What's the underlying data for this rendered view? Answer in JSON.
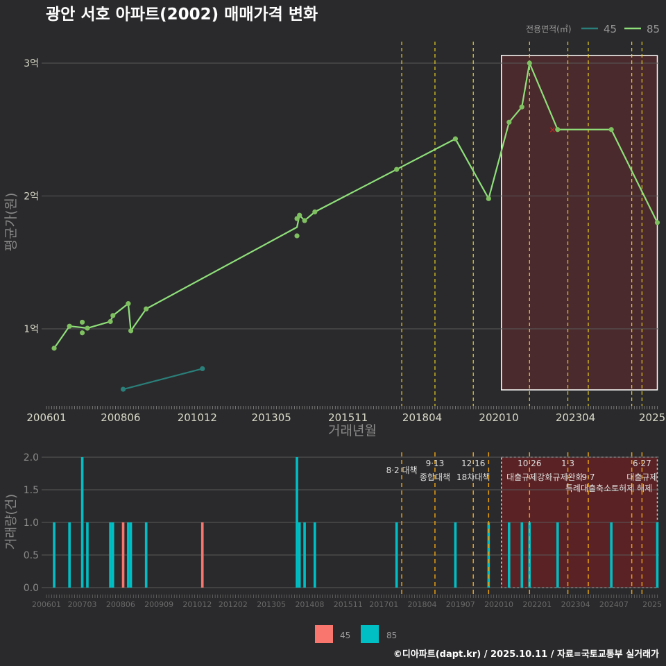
{
  "chart_data": [
    {
      "type": "line",
      "title": "광안 서호 아파트(2002) 매매가격 변화",
      "xlabel": "거래년월",
      "ylabel": "평균가(원)",
      "ylim_manwon": [
        4500,
        31000
      ],
      "yticks": [
        {
          "value": 10000,
          "label": "1억"
        },
        {
          "value": 20000,
          "label": "2억"
        },
        {
          "value": 30000,
          "label": "3억"
        }
      ],
      "xticks": [
        "200601",
        "200806",
        "201012",
        "201305",
        "201511",
        "201804",
        "202010",
        "202304",
        "2025"
      ],
      "legend": {
        "title": "전용면적(㎡)",
        "entries": [
          "45",
          "85"
        ],
        "position": "top-right"
      },
      "series": [
        {
          "name": "45",
          "color": "#2a7f7a",
          "points": [
            [
              "2008-07",
              5450
            ],
            [
              "2011-02",
              7000
            ]
          ]
        },
        {
          "name": "85",
          "color": "#8fe07a",
          "points": [
            [
              "2006-04",
              8540
            ],
            [
              "2006-10",
              10200
            ],
            [
              "2007-03",
              10500
            ],
            [
              "2007-03",
              9700
            ],
            [
              "2007-05",
              10050
            ],
            [
              "2008-02",
              10550
            ],
            [
              "2008-03",
              11000
            ],
            [
              "2008-09",
              11900
            ],
            [
              "2008-10",
              9850
            ],
            [
              "2009-04",
              11500
            ],
            [
              "2014-03",
              18300
            ],
            [
              "2014-03",
              17000
            ],
            [
              "2014-04",
              18550
            ],
            [
              "2014-06",
              18150
            ],
            [
              "2014-10",
              18800
            ],
            [
              "2017-06",
              22000
            ],
            [
              "2019-05",
              24300
            ],
            [
              "2020-06",
              19800
            ],
            [
              "2021-02",
              25550
            ],
            [
              "2021-07",
              26700
            ],
            [
              "2021-10",
              30000
            ],
            [
              "2022-09",
              25000
            ],
            [
              "2024-06",
              25000
            ],
            [
              "2025-12",
              18000
            ]
          ]
        }
      ],
      "cancelled_points": [
        [
          "2022-07",
          25000
        ]
      ],
      "highlight_range": [
        "2020-11",
        "2025-12"
      ]
    },
    {
      "type": "bar",
      "ylabel": "거래량(건)",
      "ylim": [
        0,
        2
      ],
      "yticks": [
        "0.0",
        "0.5",
        "1.0",
        "1.5",
        "2.0"
      ],
      "xticks": [
        "200601",
        "200703",
        "200806",
        "200909",
        "201012",
        "201202",
        "201305",
        "201408",
        "201511",
        "201701",
        "201804",
        "201907",
        "202010",
        "202201",
        "202304",
        "202407",
        "2025"
      ],
      "legend": {
        "entries": [
          {
            "label": "45",
            "color": "#f8766d"
          },
          {
            "label": "85",
            "color": "#00bfc4"
          }
        ],
        "position": "bottom"
      },
      "note": "bar counts per month derived from the transaction points of each series"
    }
  ],
  "policies": [
    {
      "month": "2017-08",
      "date": "",
      "label": "8·2 대책",
      "top": true
    },
    {
      "month": "2018-09",
      "date": "9·13",
      "label": "종합대책",
      "top": true
    },
    {
      "month": "2019-12",
      "date": "12·16",
      "label": "18차대책",
      "top": true
    },
    {
      "month": "2020-06",
      "date": "",
      "label": "",
      "top": false
    },
    {
      "month": "2021-10",
      "date": "10·26",
      "label": "대출규제강화",
      "top": true
    },
    {
      "month": "2023-01",
      "date": "1·3",
      "label": "규제완화",
      "top": true
    },
    {
      "month": "2023-09",
      "date": "9·7",
      "label": "특례대출축소",
      "top": true
    },
    {
      "month": "2025-02",
      "date": "",
      "label": "토허제 해제",
      "top": true
    },
    {
      "month": "2025-06",
      "date": "6·27",
      "label": "대출규제",
      "top": true
    }
  ],
  "footer": "©디아파트(dapt.kr) / 2025.10.11 / 자료=국토교통부 실거래가"
}
